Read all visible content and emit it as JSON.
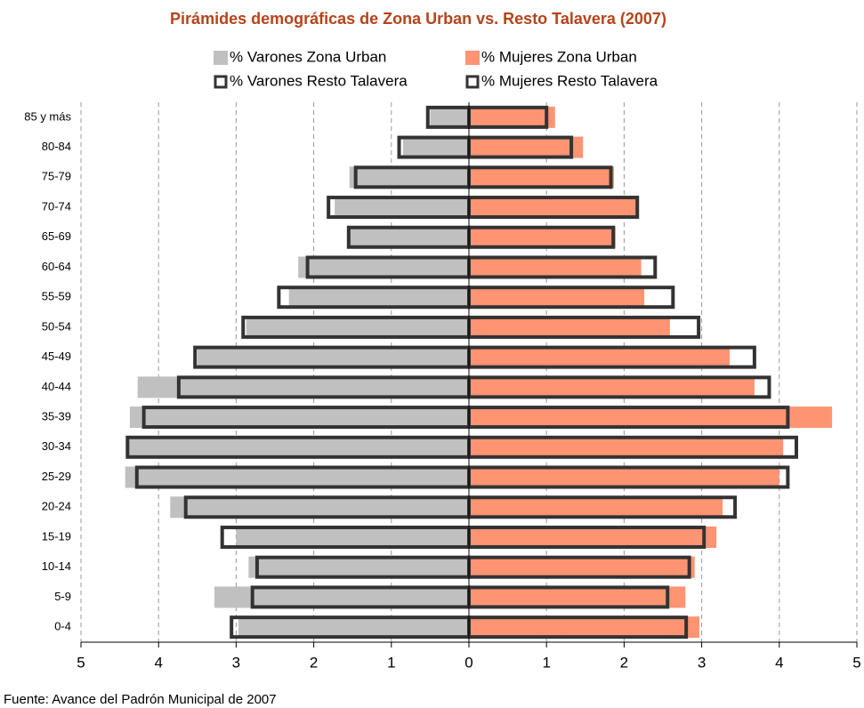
{
  "chart_data": {
    "type": "pyramid",
    "title": "Pirámides demográficas de Zona Urban vs. Resto Talavera (2007)",
    "source": "Fuente: Avance del Padrón Municipal de 2007",
    "categories": [
      "85 y más",
      "80-84",
      "75-79",
      "70-74",
      "65-69",
      "60-64",
      "55-59",
      "50-54",
      "45-49",
      "40-44",
      "35-39",
      "30-34",
      "25-29",
      "20-24",
      "15-19",
      "10-14",
      "5-9",
      "0-4"
    ],
    "series": [
      {
        "name": "% Varones Zona Urban",
        "color": "#c0c0c0",
        "style": "filled",
        "values": [
          -0.5,
          -0.85,
          -1.54,
          -1.73,
          -1.55,
          -2.2,
          -2.32,
          -2.87,
          -3.5,
          -4.27,
          -4.37,
          -4.38,
          -4.43,
          -3.85,
          -3.0,
          -2.84,
          -3.28,
          -2.97
        ]
      },
      {
        "name": "% Mujeres Zona Urban",
        "color": "#ff9473",
        "style": "filled",
        "values": [
          1.11,
          1.47,
          1.87,
          2.17,
          1.89,
          2.22,
          2.26,
          2.59,
          3.36,
          3.68,
          4.68,
          4.05,
          4.0,
          3.27,
          3.19,
          2.91,
          2.79,
          2.97
        ]
      },
      {
        "name": "% Varones Resto Talavera",
        "color": "#333333",
        "style": "outline",
        "values": [
          -0.53,
          -0.9,
          -1.46,
          -1.81,
          -1.55,
          -2.08,
          -2.45,
          -2.91,
          -3.53,
          -3.74,
          -4.19,
          -4.4,
          -4.28,
          -3.65,
          -3.18,
          -2.73,
          -2.79,
          -3.06
        ]
      },
      {
        "name": "% Mujeres Resto Talavera",
        "color": "#333333",
        "style": "outline",
        "values": [
          1.0,
          1.32,
          1.83,
          2.17,
          1.86,
          2.4,
          2.63,
          2.96,
          3.68,
          3.87,
          4.11,
          4.22,
          4.11,
          3.43,
          3.03,
          2.84,
          2.56,
          2.8
        ]
      }
    ],
    "xlim": [
      -5,
      5
    ],
    "xticks": [
      {
        "value": -5,
        "label": "5"
      },
      {
        "value": -4,
        "label": "4"
      },
      {
        "value": -3,
        "label": "3"
      },
      {
        "value": -2,
        "label": "2"
      },
      {
        "value": -1,
        "label": "1"
      },
      0,
      1,
      2,
      3,
      4,
      5
    ],
    "grid": true,
    "title_color": "#b5441b"
  }
}
